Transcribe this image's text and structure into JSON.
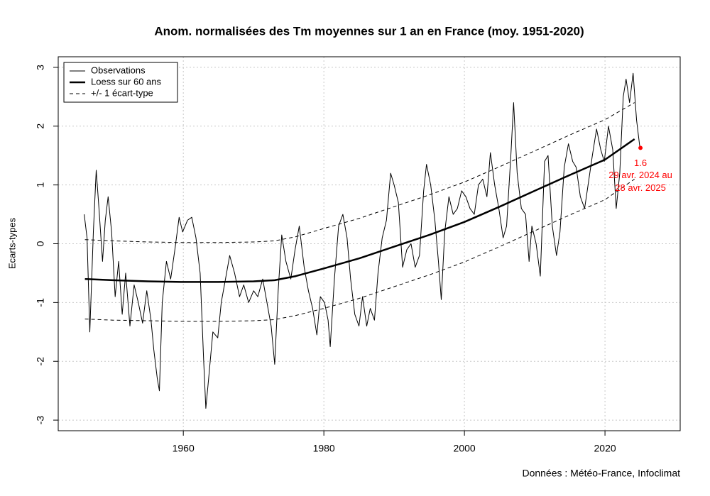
{
  "chart_data": {
    "type": "line",
    "title": "Anom. normalisées des Tm moyennes sur 1 an en France (moy. 1951-2020)",
    "y_label": "Ecarts-types",
    "source": "Données : Météo-France, Infoclimat",
    "xlim": [
      1942.2,
      2030.7
    ],
    "ylim": [
      -3.18,
      3.18
    ],
    "xticks": [
      1960,
      1980,
      2000,
      2020
    ],
    "yticks": [
      -3,
      -2,
      -1,
      0,
      1,
      2,
      3
    ],
    "grid": true,
    "legend": "top-left",
    "series": [
      {
        "name": "Observations",
        "color": "#000000",
        "line_style": "solid",
        "line_width": 1,
        "x": [
          1945.9,
          1946.3,
          1946.7,
          1947.2,
          1947.6,
          1948.0,
          1948.5,
          1948.9,
          1949.3,
          1949.8,
          1950.3,
          1950.8,
          1951.3,
          1951.8,
          1952.4,
          1953.0,
          1953.6,
          1954.2,
          1954.8,
          1955.4,
          1955.8,
          1956.3,
          1956.6,
          1957.0,
          1957.6,
          1958.2,
          1958.8,
          1959.4,
          1959.9,
          1960.6,
          1961.2,
          1961.8,
          1962.4,
          1962.9,
          1963.2,
          1963.6,
          1964.2,
          1964.9,
          1965.4,
          1966.0,
          1966.6,
          1967.3,
          1968.0,
          1968.6,
          1969.3,
          1970.0,
          1970.6,
          1971.3,
          1971.9,
          1972.5,
          1973.0,
          1973.5,
          1974.0,
          1974.6,
          1975.3,
          1975.9,
          1976.5,
          1977.2,
          1977.8,
          1978.4,
          1979.0,
          1979.5,
          1980.1,
          1980.6,
          1980.9,
          1981.5,
          1982.1,
          1982.7,
          1983.3,
          1983.8,
          1984.4,
          1985.0,
          1985.5,
          1986.1,
          1986.6,
          1987.2,
          1987.7,
          1988.3,
          1988.9,
          1989.5,
          1990.0,
          1990.6,
          1991.2,
          1991.8,
          1992.4,
          1993.0,
          1993.6,
          1994.2,
          1994.6,
          1995.2,
          1995.8,
          1996.3,
          1996.7,
          1997.2,
          1997.8,
          1998.4,
          1999.0,
          1999.6,
          2000.2,
          2000.8,
          2001.4,
          2002.0,
          2002.6,
          2003.2,
          2003.7,
          2004.3,
          2004.9,
          2005.5,
          2006.0,
          2006.6,
          2007.0,
          2007.5,
          2008.1,
          2008.7,
          2009.2,
          2009.6,
          2010.2,
          2010.8,
          2011.4,
          2011.9,
          2012.5,
          2013.1,
          2013.6,
          2014.2,
          2014.8,
          2015.4,
          2015.9,
          2016.5,
          2017.1,
          2017.6,
          2018.2,
          2018.8,
          2019.4,
          2019.9,
          2020.5,
          2021.1,
          2021.6,
          2022.1,
          2022.6,
          2023.0,
          2023.5,
          2024.0,
          2024.5,
          2025.0
        ],
        "values": [
          0.5,
          0.1,
          -1.5,
          0.2,
          1.25,
          0.6,
          -0.3,
          0.4,
          0.8,
          0.2,
          -0.9,
          -0.3,
          -1.2,
          -0.5,
          -1.4,
          -0.7,
          -1.0,
          -1.35,
          -0.8,
          -1.3,
          -1.8,
          -2.3,
          -2.5,
          -1.0,
          -0.3,
          -0.6,
          -0.1,
          0.45,
          0.2,
          0.4,
          0.45,
          0.1,
          -0.5,
          -2.0,
          -2.8,
          -2.3,
          -1.5,
          -1.6,
          -1.0,
          -0.6,
          -0.2,
          -0.5,
          -0.9,
          -0.7,
          -1.0,
          -0.8,
          -0.9,
          -0.6,
          -1.0,
          -1.4,
          -2.05,
          -0.8,
          0.15,
          -0.3,
          -0.6,
          -0.1,
          0.3,
          -0.4,
          -0.8,
          -1.1,
          -1.55,
          -0.9,
          -1.0,
          -1.3,
          -1.75,
          -0.6,
          0.3,
          0.5,
          0.1,
          -0.6,
          -1.2,
          -1.4,
          -0.9,
          -1.4,
          -1.1,
          -1.3,
          -0.5,
          0.1,
          0.4,
          1.2,
          1.0,
          0.7,
          -0.4,
          -0.1,
          0.0,
          -0.4,
          -0.2,
          0.9,
          1.35,
          1.0,
          0.4,
          -0.3,
          -0.95,
          0.2,
          0.8,
          0.5,
          0.6,
          0.9,
          0.8,
          0.6,
          0.5,
          1.0,
          1.1,
          0.8,
          1.55,
          1.0,
          0.6,
          0.1,
          0.3,
          1.5,
          2.4,
          1.2,
          0.6,
          0.5,
          -0.3,
          0.3,
          0.0,
          -0.55,
          1.4,
          1.5,
          0.3,
          -0.2,
          0.2,
          1.3,
          1.7,
          1.4,
          1.3,
          0.8,
          0.6,
          1.0,
          1.5,
          1.95,
          1.6,
          1.4,
          2.0,
          1.6,
          0.6,
          1.2,
          2.5,
          2.8,
          2.4,
          2.9,
          2.1,
          1.6
        ]
      },
      {
        "name": "Loess sur 60 ans",
        "color": "#000000",
        "line_style": "solid",
        "line_width": 2.5,
        "x": [
          1946,
          1950,
          1955,
          1960,
          1965,
          1970,
          1973,
          1976,
          1980,
          1985,
          1990,
          1995,
          2000,
          2005,
          2010,
          2015,
          2020,
          2024.2
        ],
        "values": [
          -0.6,
          -0.62,
          -0.64,
          -0.65,
          -0.65,
          -0.64,
          -0.62,
          -0.55,
          -0.42,
          -0.25,
          -0.05,
          0.15,
          0.37,
          0.63,
          0.9,
          1.17,
          1.43,
          1.78
        ]
      },
      {
        "name": "+/- 1 écart-type",
        "color": "#000000",
        "line_style": "dashed",
        "line_width": 1,
        "x": [
          1946,
          1950,
          1955,
          1960,
          1965,
          1970,
          1973,
          1976,
          1980,
          1985,
          1990,
          1995,
          2000,
          2005,
          2010,
          2015,
          2020,
          2024.2
        ],
        "values": [
          0.07,
          0.05,
          0.03,
          0.02,
          0.02,
          0.03,
          0.05,
          0.12,
          0.26,
          0.43,
          0.63,
          0.83,
          1.05,
          1.31,
          1.58,
          1.85,
          2.11,
          2.4
        ]
      },
      {
        "color": "#000000",
        "line_style": "dashed",
        "line_width": 1,
        "x": [
          1946,
          1950,
          1955,
          1960,
          1965,
          1970,
          1973,
          1976,
          1980,
          1985,
          1990,
          1995,
          2000,
          2005,
          2010,
          2015,
          2020,
          2024.2
        ],
        "values": [
          -1.28,
          -1.3,
          -1.31,
          -1.32,
          -1.32,
          -1.31,
          -1.29,
          -1.22,
          -1.1,
          -0.93,
          -0.73,
          -0.53,
          -0.31,
          -0.05,
          0.22,
          0.49,
          0.75,
          1.1
        ]
      }
    ],
    "last_point": {
      "x": 2025.05,
      "y": 1.63,
      "label": "1.6",
      "color": "#ff0000",
      "text": [
        "29 avr. 2024 au",
        "28 avr. 2025"
      ]
    }
  }
}
